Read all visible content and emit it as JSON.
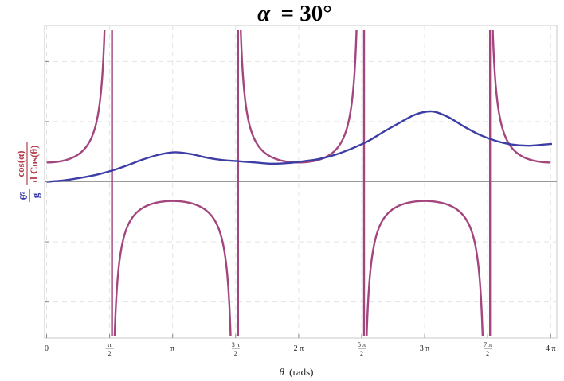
{
  "chart_data": {
    "type": "line",
    "title_symbol": "α",
    "title_value": "= 30°",
    "xlabel_symbol": "θ",
    "xlabel_units": "(rads)",
    "ylabel": {
      "blue_numerator": "θ̇²",
      "blue_denominator": "g",
      "red_numerator": "cos(α)",
      "red_denominator": "d Cos(θ)"
    },
    "xlim": [
      -0.05,
      12.72
    ],
    "ylim": [
      -2.6,
      2.6
    ],
    "x_ticks": [
      {
        "value": 0,
        "label": "0"
      },
      {
        "value": 1.5708,
        "num": "π",
        "den": "2"
      },
      {
        "value": 3.1416,
        "label": "π"
      },
      {
        "value": 4.7124,
        "num": "3 π",
        "den": "2"
      },
      {
        "value": 6.2832,
        "label": "2 π"
      },
      {
        "value": 7.854,
        "num": "5 π",
        "den": "2"
      },
      {
        "value": 9.4248,
        "label": "3 π"
      },
      {
        "value": 10.9956,
        "num": "7 π",
        "den": "2"
      },
      {
        "value": 12.5664,
        "label": "4 π"
      }
    ],
    "y_ticks": [
      -2,
      -1,
      0,
      1,
      2
    ],
    "grid": true,
    "series": [
      {
        "name": "θ̇²/g",
        "color": "#3d3da6",
        "points": [
          [
            0,
            0.0
          ],
          [
            0.4,
            0.02
          ],
          [
            0.8,
            0.06
          ],
          [
            1.2,
            0.11
          ],
          [
            1.6,
            0.18
          ],
          [
            2.0,
            0.27
          ],
          [
            2.4,
            0.37
          ],
          [
            2.8,
            0.45
          ],
          [
            3.2,
            0.49
          ],
          [
            3.6,
            0.46
          ],
          [
            4.0,
            0.4
          ],
          [
            4.4,
            0.36
          ],
          [
            4.8,
            0.34
          ],
          [
            5.2,
            0.32
          ],
          [
            5.6,
            0.3
          ],
          [
            6.0,
            0.31
          ],
          [
            6.4,
            0.34
          ],
          [
            6.8,
            0.38
          ],
          [
            7.2,
            0.45
          ],
          [
            7.6,
            0.55
          ],
          [
            8.0,
            0.67
          ],
          [
            8.4,
            0.83
          ],
          [
            8.8,
            0.98
          ],
          [
            9.2,
            1.12
          ],
          [
            9.6,
            1.17
          ],
          [
            10.0,
            1.08
          ],
          [
            10.4,
            0.92
          ],
          [
            10.8,
            0.78
          ],
          [
            11.2,
            0.68
          ],
          [
            11.6,
            0.62
          ],
          [
            12.0,
            0.6
          ],
          [
            12.4,
            0.62
          ],
          [
            12.6,
            0.63
          ]
        ]
      },
      {
        "name": "cos(α)/(d Cos(θ))",
        "color": "#a3467e",
        "amplitude": 0.32,
        "asymptotes": [
          1.5708,
          4.7124,
          7.854,
          10.9956
        ]
      }
    ]
  }
}
